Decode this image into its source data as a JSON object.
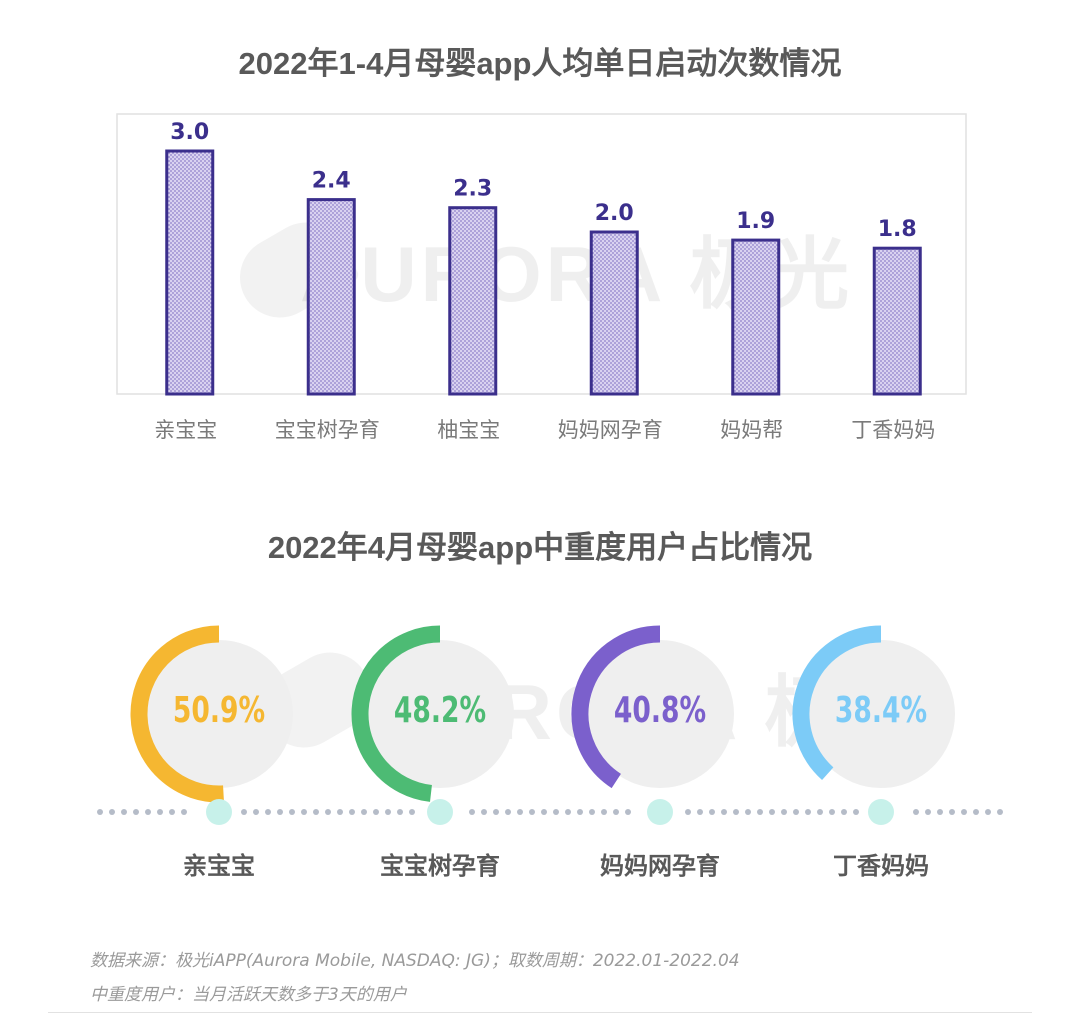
{
  "colors": {
    "bar_fill": "#c8bfe8",
    "bar_stroke": "#3b2f8c",
    "value_label": "#3b2f8c",
    "category_label": "#7a7a7a",
    "donut_track": "#efefef",
    "timeline_dots": "#b5bcc8",
    "timeline_marker": "#c7f1ea"
  },
  "watermark": "AURORA 极光",
  "footnotes": {
    "source": "数据来源：极光iAPP(Aurora Mobile, NASDAQ: JG)；取数周期：2022.01-2022.04",
    "definition": "中重度用户：当月活跃天数多于3天的用户"
  },
  "chart_data": [
    {
      "type": "bar",
      "title": "2022年1-4月母婴app人均单日启动次数情况",
      "categories": [
        "亲宝宝",
        "宝宝树孕育",
        "柚宝宝",
        "妈妈网孕育",
        "妈妈帮",
        "丁香妈妈"
      ],
      "values": [
        3.0,
        2.4,
        2.3,
        2.0,
        1.9,
        1.8
      ],
      "value_labels": [
        "3.0",
        "2.4",
        "2.3",
        "2.0",
        "1.9",
        "1.8"
      ],
      "ylim": [
        0,
        3.0
      ],
      "grid": false,
      "legend": "none"
    },
    {
      "type": "pie",
      "title": "2022年4月母婴app中重度用户占比情况",
      "categories": [
        "亲宝宝",
        "宝宝树孕育",
        "妈妈网孕育",
        "丁香妈妈"
      ],
      "values": [
        50.9,
        48.2,
        40.8,
        38.4
      ],
      "value_labels": [
        "50.9%",
        "48.2%",
        "40.8%",
        "38.4%"
      ],
      "colors": [
        "#f5b731",
        "#4dbb74",
        "#7b60cc",
        "#7ccbf7"
      ],
      "legend": "none"
    }
  ]
}
